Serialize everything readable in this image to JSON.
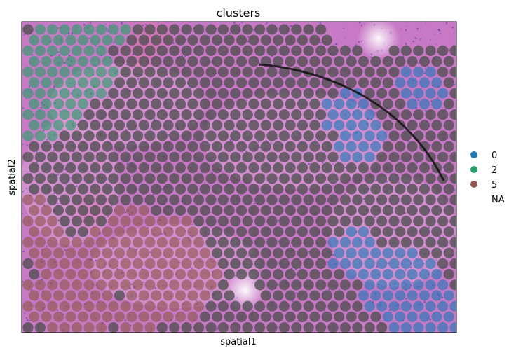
{
  "chart_data": {
    "type": "scatter",
    "title": "clusters",
    "xlabel": "spatial1",
    "ylabel": "spatial2",
    "background": "H&E tissue section image (pink/purple)",
    "grid": false,
    "ticks": false,
    "legend": {
      "placement": "right",
      "entries": [
        {
          "label": "0",
          "color": "#1f77b4"
        },
        {
          "label": "2",
          "color": "#279e68"
        },
        {
          "label": "5",
          "color": "#8c564b"
        },
        {
          "label": "NA",
          "color": "none"
        }
      ]
    },
    "colors": {
      "spot_na": "#505050",
      "tissue_base": "#c879c6",
      "tissue_light": "#dca0d8",
      "nuclei": "#4b3a9e"
    },
    "series": [
      {
        "name": "0",
        "color": "#1f77b4",
        "points": [
          [
            0.88,
            0.8
          ],
          [
            0.91,
            0.84
          ],
          [
            0.94,
            0.88
          ],
          [
            0.86,
            0.9
          ],
          [
            0.92,
            0.93
          ],
          [
            0.96,
            0.95
          ],
          [
            0.8,
            0.78
          ],
          [
            0.83,
            0.86
          ],
          [
            0.89,
            0.97
          ],
          [
            0.76,
            0.74
          ],
          [
            0.92,
            0.22
          ],
          [
            0.75,
            0.3
          ],
          [
            0.78,
            0.38
          ]
        ]
      },
      {
        "name": "2",
        "color": "#279e68",
        "points": [
          [
            0.02,
            0.18
          ],
          [
            0.05,
            0.24
          ],
          [
            0.08,
            0.15
          ],
          [
            0.11,
            0.21
          ],
          [
            0.14,
            0.1
          ],
          [
            0.17,
            0.17
          ],
          [
            0.04,
            0.31
          ],
          [
            0.09,
            0.28
          ],
          [
            0.13,
            0.03
          ],
          [
            0.19,
            0.02
          ],
          [
            0.06,
            0.08
          ]
        ]
      },
      {
        "name": "5",
        "color": "#8c564b",
        "points": [
          [
            0.02,
            0.62
          ],
          [
            0.05,
            0.68
          ],
          [
            0.08,
            0.74
          ],
          [
            0.11,
            0.8
          ],
          [
            0.14,
            0.86
          ],
          [
            0.17,
            0.92
          ],
          [
            0.2,
            0.72
          ],
          [
            0.23,
            0.8
          ],
          [
            0.26,
            0.66
          ],
          [
            0.29,
            0.78
          ],
          [
            0.32,
            0.86
          ],
          [
            0.35,
            0.7
          ],
          [
            0.38,
            0.76
          ],
          [
            0.41,
            0.82
          ],
          [
            0.05,
            0.9
          ],
          [
            0.1,
            0.96
          ],
          [
            0.27,
            0.94
          ],
          [
            0.36,
            0.9
          ]
        ]
      }
    ]
  }
}
